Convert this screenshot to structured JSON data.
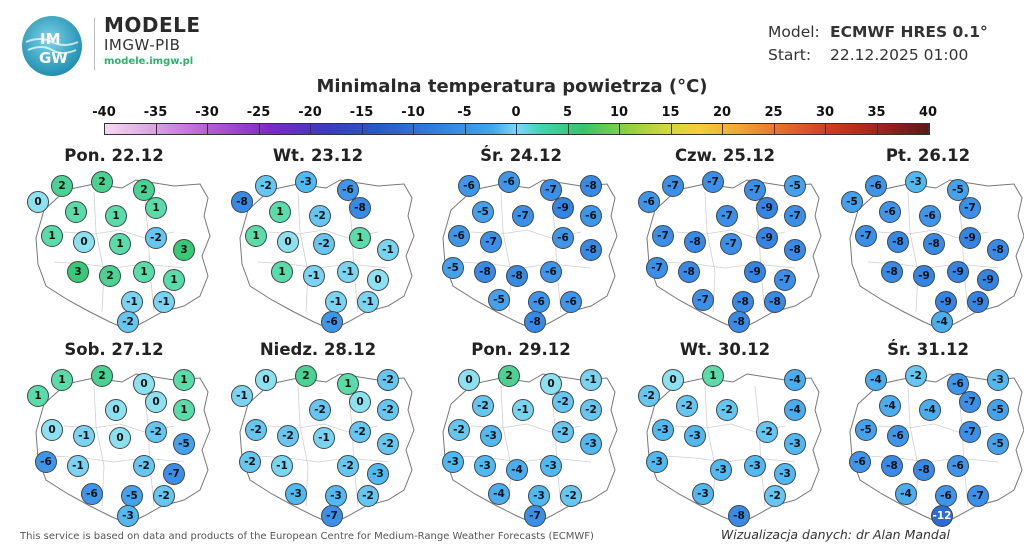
{
  "brand": {
    "title": "MODELE",
    "subtitle": "IMGW-PIB",
    "url": "modele.imgw.pl",
    "logo_text_top": "IM",
    "logo_text_bottom": "GW"
  },
  "model": {
    "model_label": "Model:",
    "model_value": "ECMWF HRES 0.1°",
    "start_label": "Start:",
    "start_value": "22.12.2025 01:00"
  },
  "title": "Minimalna temperatura powietrza (°C)",
  "colorbar": {
    "min": -40,
    "max": 40,
    "ticks": [
      "-40",
      "-35",
      "-30",
      "-25",
      "-20",
      "-15",
      "-10",
      "-5",
      "0",
      "5",
      "10",
      "15",
      "20",
      "25",
      "30",
      "35",
      "40"
    ]
  },
  "footer": {
    "source_note": "This service is based on data and products of the European Centre for Medium-Range Weather Forecasts (ECMWF)",
    "credit": "Wizualizacja danych: dr Alan Mandal"
  },
  "map_data": {
    "type": "temperature-station-map",
    "region": "Poland",
    "unit": "°C",
    "panels": [
      {
        "day": "Pon. 22.12",
        "values": [
          2,
          2,
          2,
          0,
          1,
          1,
          1,
          1,
          0,
          1,
          -2,
          3,
          3,
          2,
          1,
          1,
          -1,
          -1,
          -2
        ]
      },
      {
        "day": "Wt. 23.12",
        "values": [
          -2,
          -3,
          -6,
          -8,
          1,
          -2,
          -8,
          1,
          0,
          -2,
          1,
          -1,
          1,
          -1,
          -1,
          0,
          -1,
          -1,
          -6
        ]
      },
      {
        "day": "Śr. 24.12",
        "values": [
          -6,
          -6,
          -7,
          -8,
          -5,
          -7,
          -9,
          -6,
          -6,
          -7,
          -6,
          -8,
          -5,
          -8,
          -8,
          -6,
          -5,
          -6,
          -6,
          -8
        ]
      },
      {
        "day": "Czw. 25.12",
        "values": [
          -7,
          -7,
          -7,
          -5,
          -6,
          -7,
          -9,
          -7,
          -7,
          -8,
          -7,
          -9,
          -8,
          -7,
          -8,
          -9,
          -7,
          -7,
          -8,
          -8,
          -8
        ]
      },
      {
        "day": "Pt. 26.12",
        "values": [
          -6,
          -3,
          -5,
          -5,
          -6,
          -6,
          -7,
          -7,
          -8,
          -8,
          -9,
          -8,
          -8,
          -9,
          -9,
          -9,
          -9,
          -9,
          -4
        ]
      },
      {
        "day": "Sob. 27.12",
        "values": [
          1,
          2,
          0,
          1,
          1,
          0,
          0,
          1,
          0,
          -1,
          0,
          -2,
          -5,
          -6,
          -1,
          -2,
          -7,
          -6,
          -5,
          -2,
          -3
        ]
      },
      {
        "day": "Niedz. 28.12",
        "values": [
          0,
          2,
          1,
          -2,
          -1,
          -2,
          0,
          -2,
          -2,
          -2,
          -1,
          -2,
          -2,
          -2,
          -1,
          -2,
          -3,
          -3,
          -3,
          -2,
          -7
        ]
      },
      {
        "day": "Pon. 29.12",
        "values": [
          0,
          2,
          0,
          -1,
          -2,
          -1,
          -2,
          -2,
          -2,
          -3,
          -2,
          -3,
          -3,
          -3,
          -4,
          -3,
          -4,
          -3,
          -2,
          -7
        ]
      },
      {
        "day": "Wt. 30.12",
        "values": [
          0,
          1,
          -4,
          -2,
          -2,
          -2,
          -4,
          -3,
          -3,
          -2,
          -3,
          -3,
          -3,
          -3,
          -3,
          -3,
          -2,
          -8
        ]
      },
      {
        "day": "Śr. 31.12",
        "values": [
          -4,
          -2,
          -6,
          -3,
          -4,
          -4,
          -7,
          -5,
          -5,
          -6,
          -7,
          -5,
          -6,
          -8,
          -8,
          -6,
          -4,
          -6,
          -7,
          -12
        ]
      }
    ]
  },
  "colors": {
    "accent_green": "#2bb36b",
    "map_fill": "#ffffff",
    "map_border": "#777777"
  }
}
